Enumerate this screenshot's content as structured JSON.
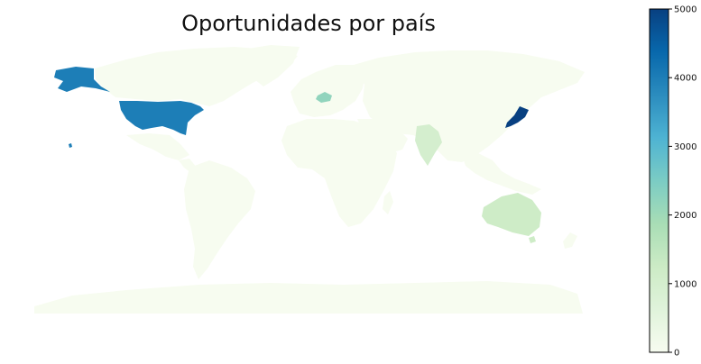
{
  "chart_data": {
    "type": "choropleth",
    "title": "Oportunidades por país",
    "colormap": "GnBu",
    "colorbar": {
      "range": [
        0,
        5000
      ],
      "ticks": [
        0,
        1000,
        2000,
        3000,
        4000,
        5000
      ],
      "tick_labels": [
        "0",
        "1000",
        "2000",
        "3000",
        "4000",
        "5000"
      ],
      "position": "right"
    },
    "grid": false,
    "axes_visible": false,
    "base_value": 0,
    "regions": [
      {
        "country": "United States",
        "value": 4000
      },
      {
        "country": "Japan",
        "value": 5000
      },
      {
        "country": "Austria",
        "value": 2200
      },
      {
        "country": "India",
        "value": 1000
      },
      {
        "country": "Australia",
        "value": 1200
      }
    ]
  }
}
